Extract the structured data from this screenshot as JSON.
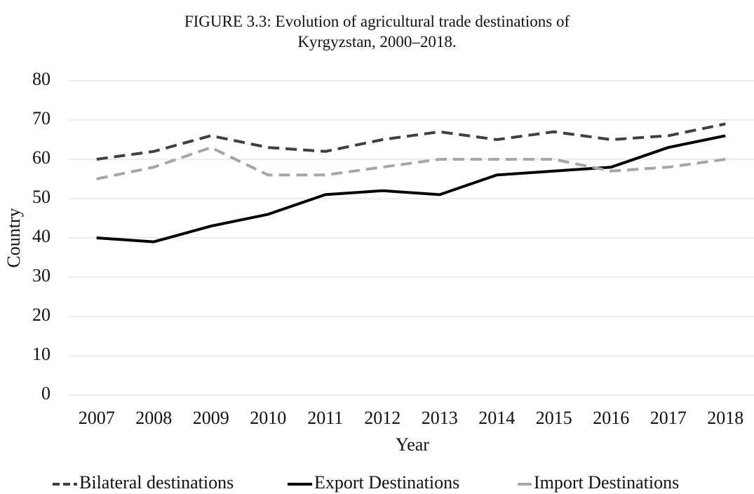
{
  "chart_data": {
    "type": "line",
    "title": "FIGURE 3.3: Evolution of agricultural trade destinations of Kyrgyzstan, 2000–2018.",
    "xlabel": "Year",
    "ylabel": "Country",
    "categories": [
      "2007",
      "2008",
      "2009",
      "2010",
      "2011",
      "2012",
      "2013",
      "2014",
      "2015",
      "2016",
      "2017",
      "2018"
    ],
    "series": [
      {
        "name": "Bilateral destinations",
        "color": "#404040",
        "dash": true,
        "values": [
          60,
          62,
          66,
          63,
          62,
          65,
          67,
          65,
          67,
          65,
          66,
          69
        ]
      },
      {
        "name": "Export Destinations",
        "color": "#000000",
        "dash": false,
        "values": [
          40,
          39,
          43,
          46,
          51,
          52,
          51,
          56,
          57,
          58,
          63,
          66
        ]
      },
      {
        "name": "Import Destinations",
        "color": "#a6a6a6",
        "dash": true,
        "values": [
          55,
          58,
          63,
          56,
          56,
          58,
          60,
          60,
          60,
          57,
          58,
          60
        ]
      }
    ],
    "ylim": [
      0,
      80
    ],
    "yticks": [
      0,
      10,
      20,
      30,
      40,
      50,
      60,
      70,
      80
    ],
    "grid": true,
    "legend": "bottom"
  }
}
